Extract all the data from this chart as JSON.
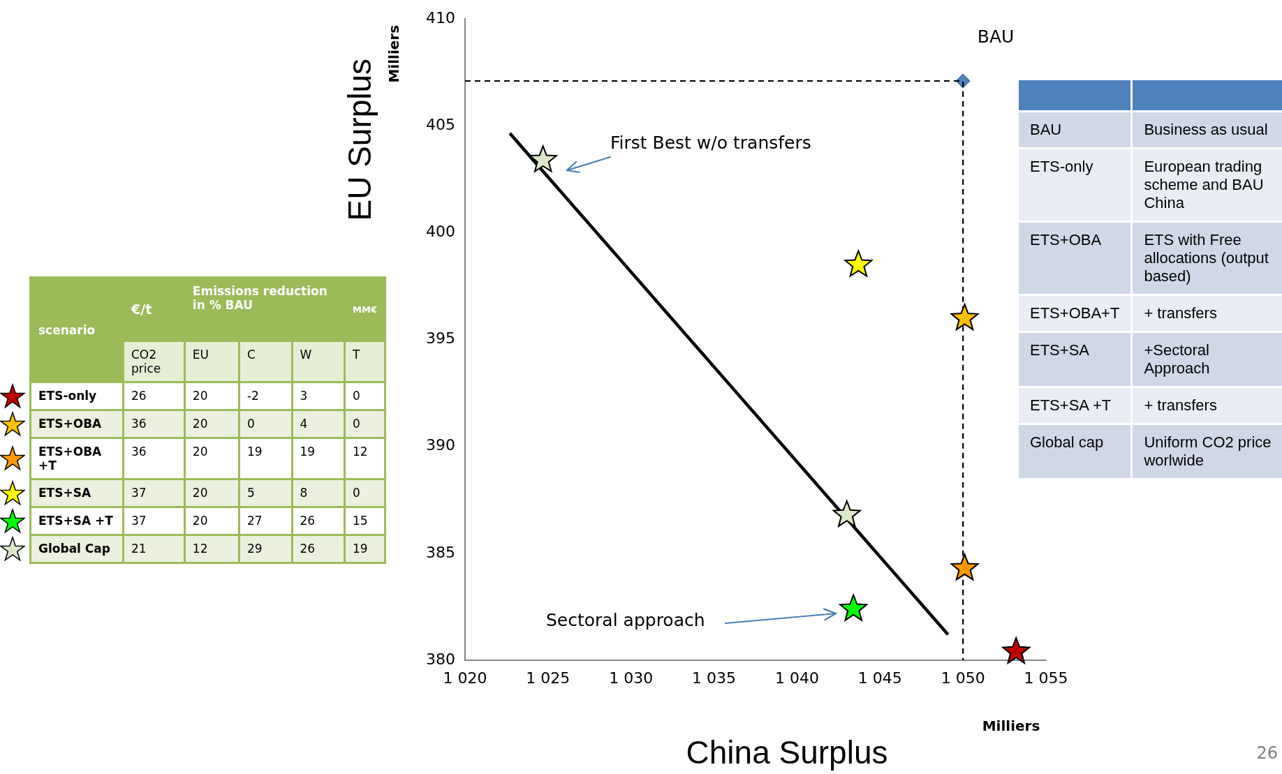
{
  "chart_data": [
    {
      "type": "other",
      "annotations": [
        "scenario",
        "€/t",
        "Emissions reduction in % BAU",
        "MM€"
      ],
      "categories": [
        "CO2 price",
        "EU",
        "C",
        "W",
        "T"
      ],
      "y_categories": [
        "ETS-only",
        "ETS+OBA",
        "ETS+OBA +T",
        "ETS+SA",
        "ETS+SA +T",
        "Global Cap"
      ],
      "cell_labels": [
        [
          "26",
          "20",
          "-2",
          "3",
          "0"
        ],
        [
          "36",
          "20",
          "0",
          "4",
          "0"
        ],
        [
          "36",
          "20",
          "19",
          "19",
          "12"
        ],
        [
          "37",
          "20",
          "5",
          "8",
          "0"
        ],
        [
          "37",
          "20",
          "27",
          "26",
          "15"
        ],
        [
          "21",
          "12",
          "29",
          "26",
          "19"
        ]
      ]
    },
    {
      "type": "scatter",
      "xlabel": "China Surplus",
      "ylabel": "EU Surplus",
      "grid": false,
      "legend": false,
      "xlim": [
        1020,
        1055
      ],
      "xticks": [
        {
          "value": 1020,
          "label": "1 020"
        },
        {
          "value": 1025,
          "label": "1 025"
        },
        {
          "value": 1030,
          "label": "1 030"
        },
        {
          "value": 1035,
          "label": "1 035"
        },
        {
          "value": 1040,
          "label": "1 040"
        },
        {
          "value": 1045,
          "label": "1 045"
        },
        {
          "value": 1050,
          "label": "1 050"
        },
        {
          "value": 1055,
          "label": "1 055"
        }
      ],
      "ylim": [
        380,
        410
      ],
      "yticks": [
        380,
        385,
        390,
        395,
        400,
        405,
        410
      ],
      "series": [
        {
          "type": "line",
          "color": "#000000",
          "line_style": "dashed",
          "marker": "none",
          "x": [
            1020,
            1050,
            1050
          ],
          "values": [
            407.1,
            407.1,
            380
          ]
        },
        {
          "type": "line",
          "color": "#000000",
          "line_style": "solid",
          "marker": "none",
          "x": [
            1022.7,
            1049.1
          ],
          "values": [
            404.65,
            381.2
          ]
        },
        {
          "color": "#4f81bd",
          "marker": "diamond",
          "x": [
            1050
          ],
          "values": [
            407.1
          ]
        },
        {
          "color": "#c00000",
          "marker": "star",
          "x": [
            1053.2
          ],
          "values": [
            380.4
          ]
        },
        {
          "color": "#ffc000",
          "marker": "star",
          "x": [
            1050.1
          ],
          "values": [
            396.0
          ]
        },
        {
          "color": "#ff9900",
          "marker": "star",
          "x": [
            1050.1
          ],
          "values": [
            384.3
          ]
        },
        {
          "color": "#ffff00",
          "marker": "star",
          "x": [
            1043.7
          ],
          "values": [
            398.5
          ]
        },
        {
          "color": "#00ff00",
          "marker": "star",
          "x": [
            1043.4
          ],
          "values": [
            382.4
          ]
        },
        {
          "color": "#dde8cb",
          "marker": "star",
          "x": [
            1024.7,
            1043.0
          ],
          "values": [
            403.4,
            386.8
          ]
        }
      ],
      "annotations": [
        {
          "text": "BAU",
          "x": 1050,
          "y": 407.1
        },
        "First Best w/o transfers",
        "Sectoral approach",
        "Milliers",
        "Milliers",
        "26"
      ]
    },
    {
      "type": "other",
      "y_categories": [
        "BAU",
        "ETS-only",
        "ETS+OBA",
        "ETS+OBA+T",
        "ETS+SA",
        "ETS+SA +T",
        "Global cap"
      ],
      "cell_labels": [
        [
          "Business as usual"
        ],
        [
          "European trading scheme and BAU China"
        ],
        [
          "ETS with Free allocations (output based)"
        ],
        [
          "+ transfers"
        ],
        [
          "+Sectoral Approach"
        ],
        [
          "+ transfers"
        ],
        [
          "Uniform CO2 price worlwide"
        ]
      ]
    }
  ]
}
